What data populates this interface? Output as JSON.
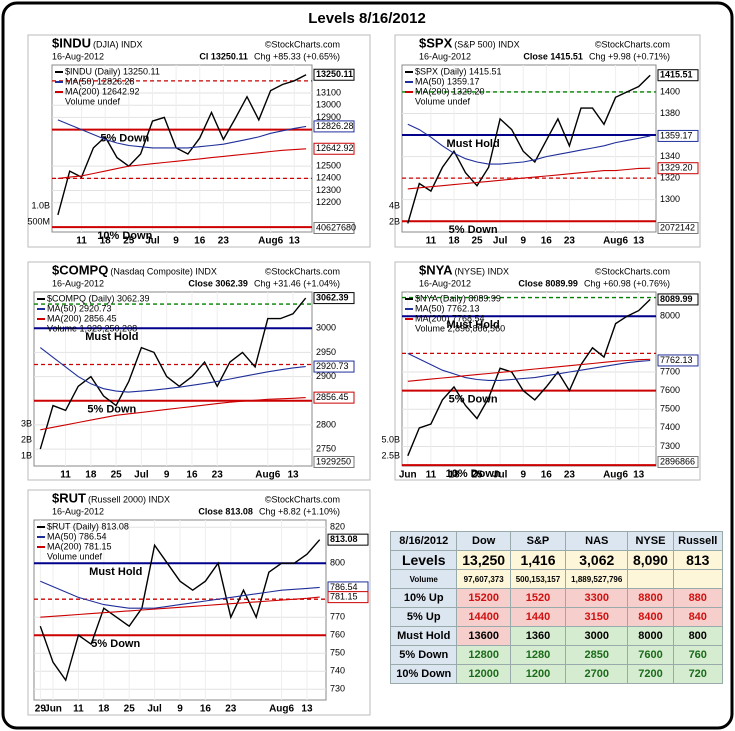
{
  "title": "Levels 8/16/2012",
  "chart_data": [
    {
      "type": "line",
      "symbol": "$INDU",
      "description": "(DJIA) INDX",
      "source": "©StockCharts.com",
      "date": "16-Aug-2012",
      "quote": "Cl 13250.11",
      "change": "Chg +85.33 (+0.65%)",
      "categories": [
        null,
        null,
        "11",
        null,
        "18",
        null,
        "25",
        null,
        "Jul",
        null,
        "9",
        null,
        "16",
        null,
        "23",
        null,
        null,
        null,
        "Aug6",
        null,
        "13",
        null
      ],
      "series": [
        {
          "name": "$INDU (Daily) 13250.11",
          "color": "#000000",
          "values": [
            12100,
            12460,
            12410,
            12650,
            12740,
            12570,
            12500,
            12600,
            12870,
            12900,
            12650,
            12600,
            12730,
            12940,
            12720,
            12890,
            13070,
            12880,
            13120,
            13170,
            13200,
            13250.11
          ]
        },
        {
          "name": "MA(50) 12826.28",
          "color": "#1f2f9a",
          "values": [
            12880,
            12840,
            12800,
            12760,
            12720,
            12690,
            12670,
            12660,
            12650,
            12650,
            12650,
            12650,
            12660,
            12670,
            12680,
            12700,
            12720,
            12740,
            12770,
            12790,
            12810,
            12826.28
          ]
        },
        {
          "name": "MA(200) 12642.92",
          "color": "#cc0000",
          "values": [
            12400,
            12410,
            12420,
            12440,
            12460,
            12480,
            12500,
            12510,
            12520,
            12530,
            12540,
            12550,
            12560,
            12570,
            12580,
            12590,
            12600,
            12610,
            12620,
            12630,
            12636,
            12642.92
          ]
        }
      ],
      "volume_label": "Volume undef",
      "volume_ticks": [
        "1.0B",
        "500M"
      ],
      "volume_tag": "40627680",
      "ylim": [
        11960,
        13330
      ],
      "yticks": [
        12200,
        12300,
        12400,
        12500,
        12900,
        13000,
        13100
      ],
      "levels": [
        {
          "value": 13200,
          "color": "#cc0000",
          "style": "dashed"
        },
        {
          "value": 12800,
          "label": "5% Down",
          "color": "#cc0000",
          "style": "solid"
        },
        {
          "value": 12400,
          "color": "#cc0000",
          "style": "dashed"
        },
        {
          "value": 12000,
          "label": "10% Down",
          "color": "#cc0000",
          "style": "solid"
        }
      ],
      "price_tags": [
        {
          "value": 13250.11,
          "color": "#000000"
        },
        {
          "value": 12826.28,
          "color": "#1f2f9a"
        },
        {
          "value": 12642.92,
          "color": "#cc0000"
        }
      ]
    },
    {
      "type": "line",
      "symbol": "$SPX",
      "description": "(S&P 500) INDX",
      "source": "©StockCharts.com",
      "date": "16-Aug-2012",
      "quote": "Close 1415.51",
      "change": "Chg +9.98 (+0.71%)",
      "categories": [
        null,
        null,
        "11",
        null,
        "18",
        null,
        "25",
        null,
        "Jul",
        null,
        "9",
        null,
        "16",
        null,
        "23",
        null,
        null,
        null,
        "Aug6",
        null,
        "13",
        null
      ],
      "series": [
        {
          "name": "$SPX (Daily) 1415.51",
          "color": "#000000",
          "values": [
            1278,
            1315,
            1308,
            1330,
            1345,
            1325,
            1313,
            1330,
            1375,
            1365,
            1345,
            1335,
            1355,
            1375,
            1350,
            1385,
            1385,
            1370,
            1395,
            1400,
            1405,
            1415.51
          ]
        },
        {
          "name": "MA(50) 1359.17",
          "color": "#1f2f9a",
          "values": [
            1370,
            1365,
            1358,
            1350,
            1343,
            1338,
            1335,
            1333,
            1333,
            1334,
            1335,
            1337,
            1340,
            1342,
            1344,
            1346,
            1348,
            1350,
            1353,
            1355,
            1357,
            1359.17
          ]
        },
        {
          "name": "MA(200) 1329.20",
          "color": "#cc0000",
          "values": [
            1310,
            1311,
            1312,
            1313,
            1314,
            1315,
            1316,
            1317,
            1318,
            1319,
            1320,
            1321,
            1322,
            1323,
            1324,
            1325,
            1326,
            1327,
            1327,
            1328,
            1329,
            1329.2
          ]
        }
      ],
      "volume_label": "Volume undef",
      "volume_ticks": [
        "4B",
        "2B"
      ],
      "volume_tag": "2072142",
      "ylim": [
        1270,
        1425
      ],
      "yticks": [
        1300,
        1320,
        1340,
        1380,
        1400
      ],
      "levels": [
        {
          "value": 1400,
          "color": "#008000",
          "style": "dashed"
        },
        {
          "value": 1360,
          "label": "Must Hold",
          "color": "#00008b",
          "style": "solid"
        },
        {
          "value": 1320,
          "color": "#cc0000",
          "style": "dashed"
        },
        {
          "value": 1280,
          "label": "5% Down",
          "color": "#cc0000",
          "style": "solid"
        }
      ],
      "price_tags": [
        {
          "value": 1415.51,
          "color": "#000000"
        },
        {
          "value": 1359.17,
          "color": "#1f2f9a"
        },
        {
          "value": 1329.2,
          "label": "1329.20",
          "color": "#cc0000"
        }
      ]
    },
    {
      "type": "line",
      "symbol": "$COMPQ",
      "description": "(Nasdaq Composite) INDX",
      "source": "©StockCharts.com",
      "date": "16-Aug-2012",
      "quote": "Close 3062.39",
      "change": "Chg +31.46 (+1.04%)",
      "categories": [
        null,
        null,
        "11",
        null,
        "18",
        null,
        "25",
        null,
        "Jul",
        null,
        "9",
        null,
        "16",
        null,
        "23",
        null,
        null,
        null,
        "Aug6",
        null,
        "13",
        null
      ],
      "series": [
        {
          "name": "$COMPQ (Daily) 3062.39",
          "color": "#000000",
          "values": [
            2750,
            2840,
            2830,
            2880,
            2900,
            2860,
            2840,
            2890,
            2960,
            2950,
            2900,
            2880,
            2900,
            2930,
            2880,
            2930,
            2950,
            2920,
            3020,
            3020,
            3030,
            3062.39
          ]
        },
        {
          "name": "MA(50) 2920.73",
          "color": "#1f2f9a",
          "values": [
            2960,
            2940,
            2920,
            2900,
            2885,
            2875,
            2870,
            2868,
            2870,
            2872,
            2875,
            2878,
            2882,
            2886,
            2890,
            2895,
            2900,
            2905,
            2910,
            2914,
            2918,
            2920.73
          ]
        },
        {
          "name": "MA(200) 2856.45",
          "color": "#cc0000",
          "values": [
            2790,
            2795,
            2800,
            2805,
            2810,
            2815,
            2820,
            2823,
            2826,
            2829,
            2832,
            2835,
            2838,
            2841,
            2844,
            2847,
            2849,
            2851,
            2853,
            2854,
            2855,
            2856.45
          ]
        }
      ],
      "volume_label": "Volume 1,929,250,208",
      "volume_ticks": [
        "3B",
        "2B",
        "1B"
      ],
      "volume_tag": "1929250",
      "ylim": [
        2715,
        3075
      ],
      "yticks": [
        2750,
        2800,
        2900,
        2950,
        3000
      ],
      "levels": [
        {
          "value": 3050,
          "color": "#008000",
          "style": "dashed"
        },
        {
          "value": 3000,
          "label": "Must Hold",
          "color": "#00008b",
          "style": "solid"
        },
        {
          "value": 2925,
          "color": "#cc0000",
          "style": "dashed"
        },
        {
          "value": 2850,
          "label": "5% Down",
          "color": "#cc0000",
          "style": "solid"
        }
      ],
      "price_tags": [
        {
          "value": 3062.39,
          "color": "#000000"
        },
        {
          "value": 2920.73,
          "color": "#1f2f9a"
        },
        {
          "value": 2856.45,
          "color": "#cc0000"
        }
      ]
    },
    {
      "type": "line",
      "symbol": "$NYA",
      "description": "(NYSE) INDX",
      "source": "©StockCharts.com",
      "date": "16-Aug-2012",
      "quote": "Close 8089.99",
      "change": "Chg +60.98 (+0.76%)",
      "categories": [
        "Jun",
        null,
        "11",
        null,
        "18",
        null,
        "25",
        null,
        "Jul",
        null,
        "9",
        null,
        "16",
        null,
        "23",
        null,
        null,
        null,
        "Aug6",
        null,
        "13",
        null
      ],
      "series": [
        {
          "name": "$NYA (Daily) 8089.99",
          "color": "#000000",
          "values": [
            7250,
            7400,
            7420,
            7550,
            7620,
            7520,
            7450,
            7560,
            7720,
            7700,
            7600,
            7550,
            7620,
            7700,
            7600,
            7740,
            7830,
            7780,
            7960,
            8000,
            8030,
            8089.99
          ]
        },
        {
          "name": "MA(50) 7762.13",
          "color": "#1f2f9a",
          "values": [
            7800,
            7770,
            7740,
            7710,
            7690,
            7670,
            7660,
            7655,
            7655,
            7660,
            7665,
            7670,
            7680,
            7690,
            7700,
            7710,
            7720,
            7730,
            7740,
            7750,
            7757,
            7762.13
          ]
        },
        {
          "name": "MA(200) 7768.54",
          "color": "#cc0000",
          "values": [
            7650,
            7656,
            7662,
            7668,
            7674,
            7680,
            7686,
            7692,
            7698,
            7704,
            7710,
            7716,
            7722,
            7728,
            7734,
            7740,
            7746,
            7752,
            7758,
            7762,
            7766,
            7768.54
          ]
        }
      ],
      "volume_label": "Volume 2,896,866,560",
      "volume_ticks": [
        "5.0B",
        "2.5B"
      ],
      "volume_tag": "2896866",
      "ylim": [
        7195,
        8130
      ],
      "yticks": [
        7300,
        7400,
        7500,
        7600,
        7700,
        8000
      ],
      "levels": [
        {
          "value": 8100,
          "color": "#008000",
          "style": "dashed"
        },
        {
          "value": 8000,
          "label": "Must Hold",
          "color": "#00008b",
          "style": "solid"
        },
        {
          "value": 7800,
          "color": "#cc0000",
          "style": "dashed"
        },
        {
          "value": 7600,
          "label": "5% Down",
          "color": "#cc0000",
          "style": "solid"
        },
        {
          "value": 7200,
          "label": "10% Down",
          "color": "#cc0000",
          "style": "solid"
        }
      ],
      "price_tags": [
        {
          "value": 8089.99,
          "color": "#000000"
        },
        {
          "value": 7762.13,
          "color": "#1f2f9a"
        }
      ]
    },
    {
      "type": "line",
      "symbol": "$RUT",
      "description": "(Russell 2000) INDX",
      "source": "©StockCharts.com",
      "date": "16-Aug-2012",
      "quote": "Close 813.08",
      "change": "Chg +8.82 (+1.10%)",
      "categories": [
        "29",
        "Jun",
        null,
        "11",
        null,
        "18",
        null,
        "25",
        null,
        "Jul",
        null,
        "9",
        null,
        "16",
        null,
        "23",
        null,
        null,
        null,
        "Aug6",
        null,
        "13",
        null
      ],
      "series": [
        {
          "name": "$RUT (Daily) 813.08",
          "color": "#000000",
          "values": [
            765,
            745,
            735,
            760,
            755,
            775,
            770,
            765,
            775,
            810,
            800,
            790,
            785,
            790,
            800,
            770,
            785,
            770,
            795,
            800,
            800,
            805,
            813.08
          ]
        },
        {
          "name": "MA(50) 786.54",
          "color": "#1f2f9a",
          "values": [
            790,
            787,
            784,
            781,
            779,
            777,
            776,
            775,
            775,
            775,
            776,
            777,
            778,
            779,
            780,
            781,
            782,
            783,
            784,
            785,
            785.5,
            786,
            786.54
          ]
        },
        {
          "name": "MA(200) 781.15",
          "color": "#cc0000",
          "values": [
            770,
            770.5,
            771,
            771.5,
            772,
            772.5,
            773,
            773.5,
            774,
            774.5,
            775,
            775.5,
            776,
            776.5,
            777,
            777.5,
            778,
            778.5,
            779,
            779.5,
            780,
            780.5,
            781.15
          ]
        }
      ],
      "volume_label": "Volume undef",
      "ylim": [
        724,
        824
      ],
      "yticks": [
        730,
        740,
        750,
        760,
        770,
        800,
        820
      ],
      "levels": [
        {
          "value": 800,
          "label": "Must Hold",
          "color": "#00008b",
          "style": "solid"
        },
        {
          "value": 780,
          "color": "#cc0000",
          "style": "dashed"
        },
        {
          "value": 760,
          "label": "5% Down",
          "color": "#cc0000",
          "style": "solid"
        }
      ],
      "price_tags": [
        {
          "value": 813.08,
          "color": "#000000"
        },
        {
          "value": 786.54,
          "color": "#1f2f9a"
        },
        {
          "value": 781.15,
          "color": "#cc0000"
        }
      ]
    }
  ],
  "table": {
    "header": [
      "8/16/2012",
      "Dow",
      "S&P",
      "NAS",
      "NYSE",
      "Russell"
    ],
    "rows": [
      [
        "Levels",
        "13,250",
        "1,416",
        "3,062",
        "8,090",
        "813"
      ],
      [
        "Volume",
        "97,607,373",
        "500,153,157",
        "1,889,527,796"
      ],
      [
        "10% Up",
        "15200",
        "1520",
        "3300",
        "8800",
        "880"
      ],
      [
        "5% Up",
        "14400",
        "1440",
        "3150",
        "8400",
        "840"
      ],
      [
        "Must Hold",
        "13600",
        "1360",
        "3000",
        "8000",
        "800"
      ],
      [
        "5% Down",
        "12800",
        "1280",
        "2850",
        "7600",
        "760"
      ],
      [
        "10% Down",
        "12000",
        "1200",
        "2700",
        "7200",
        "720"
      ]
    ]
  }
}
